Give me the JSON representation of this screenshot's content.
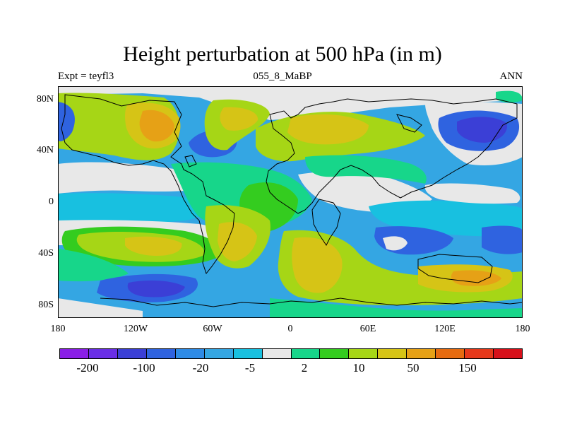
{
  "title": "Height perturbation at 500 hPa (in m)",
  "subtitle_left": "Expt = teyfl3",
  "subtitle_center": "055_8_MaBP",
  "subtitle_right": "ANN",
  "lat_labels": [
    "80N",
    "40N",
    "0",
    "40S",
    "80S"
  ],
  "lon_labels": [
    "180",
    "120W",
    "60W",
    "0",
    "60E",
    "120E",
    "180"
  ],
  "colorbar": {
    "colors": [
      "#8a1ee6",
      "#6a2ee6",
      "#3b3fd6",
      "#2f63e0",
      "#2e8be6",
      "#34a6e3",
      "#18c0e0",
      "#e8e8e8",
      "#17d68a",
      "#34cc1f",
      "#a6d616",
      "#d6c416",
      "#e6a116",
      "#e66b10",
      "#e6381a",
      "#d8101a"
    ],
    "labels": [
      "-200",
      "-100",
      "-20",
      "-5",
      "2",
      "10",
      "50",
      "150"
    ]
  },
  "field_colors": {
    "ocean_neutral": "#34a6e3",
    "low": "#2f63e0",
    "verylow": "#3b3fd6",
    "neutral": "#e8e8e8",
    "cyan": "#18c0e0",
    "teal": "#17d68a",
    "green": "#34cc1f",
    "yellowgreen": "#a6d616",
    "yellow": "#d6c416",
    "orange": "#e6a116"
  }
}
